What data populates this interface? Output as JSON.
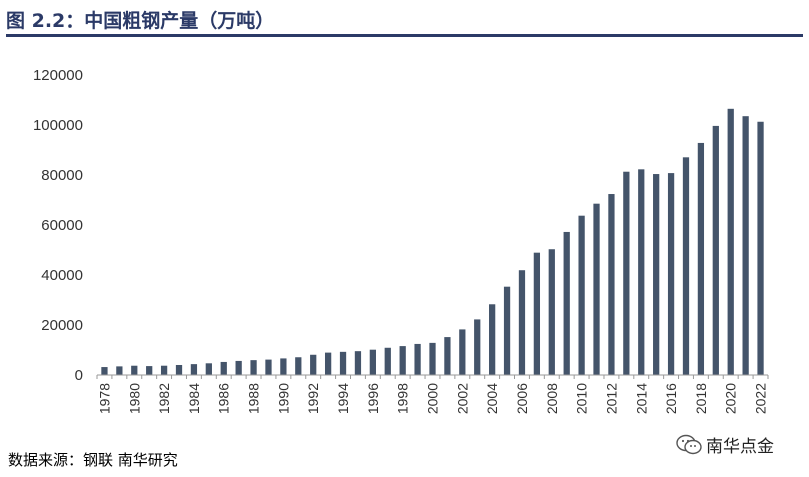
{
  "title": "图 2.2：中国粗钢产量（万吨）",
  "source": "数据来源：钢联  南华研究",
  "watermark": "南华点金",
  "colors": {
    "bar": "#44546a",
    "title": "#2b3a67"
  },
  "icons": {
    "watermark": "wechat-icon"
  },
  "chart_data": {
    "type": "bar",
    "title": "中国粗钢产量（万吨）",
    "xlabel": "",
    "ylabel": "",
    "ylim": [
      0,
      120000
    ],
    "yticks": [
      0,
      20000,
      40000,
      60000,
      80000,
      100000,
      120000
    ],
    "grid": false,
    "categories": [
      "1978",
      "1979",
      "1980",
      "1981",
      "1982",
      "1983",
      "1984",
      "1985",
      "1986",
      "1987",
      "1988",
      "1989",
      "1990",
      "1991",
      "1992",
      "1993",
      "1994",
      "1995",
      "1996",
      "1997",
      "1998",
      "1999",
      "2000",
      "2001",
      "2002",
      "2003",
      "2004",
      "2005",
      "2006",
      "2007",
      "2008",
      "2009",
      "2010",
      "2011",
      "2012",
      "2013",
      "2014",
      "2015",
      "2016",
      "2017",
      "2018",
      "2019",
      "2020",
      "2021",
      "2022"
    ],
    "xtick_labels": [
      "1978",
      "1980",
      "1982",
      "1984",
      "1986",
      "1988",
      "1990",
      "1992",
      "1994",
      "1996",
      "1998",
      "2000",
      "2002",
      "2004",
      "2006",
      "2008",
      "2010",
      "2012",
      "2014",
      "2016",
      "2018",
      "2020",
      "2022"
    ],
    "values": [
      3178,
      3448,
      3712,
      3560,
      3716,
      4002,
      4347,
      4679,
      5221,
      5628,
      5943,
      6159,
      6635,
      7100,
      8094,
      8956,
      9261,
      9536,
      10124,
      10894,
      11559,
      12426,
      12850,
      15163,
      18237,
      22234,
      28291,
      35324,
      41915,
      48929,
      50306,
      57218,
      63723,
      68528,
      72388,
      81314,
      82270,
      80383,
      80761,
      87074,
      92826,
      99634,
      106477,
      103524,
      101300
    ]
  }
}
